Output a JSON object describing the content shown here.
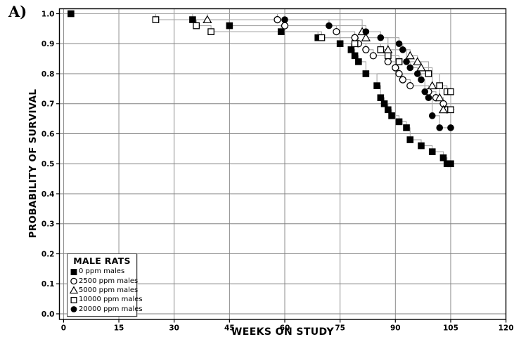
{
  "figure_label": "A)",
  "legend": {
    "title": "MALE RATS",
    "position": "lower-left"
  },
  "chart_data": {
    "type": "line",
    "step": true,
    "title": "",
    "xlabel": "WEEKS ON STUDY",
    "ylabel": "PROBABILITY OF SURVIVAL",
    "xlim": [
      0,
      120
    ],
    "ylim": [
      0.0,
      1.0
    ],
    "x_ticks": [
      0,
      15,
      30,
      45,
      60,
      75,
      90,
      105,
      120
    ],
    "y_tick_labels": [
      "1.0",
      "0.9",
      "0.8",
      "0.7",
      "0.6",
      "0.5",
      "0.4",
      "0.3",
      "0.2",
      "0.1",
      "0.0"
    ],
    "grid": true,
    "legend_position": "lower-left",
    "curve_end_week": 106,
    "series": [
      {
        "name": "0 ppm males",
        "marker": "filled-square",
        "points": [
          [
            2,
            1.0
          ],
          [
            35,
            0.98
          ],
          [
            45,
            0.96
          ],
          [
            59,
            0.94
          ],
          [
            69,
            0.92
          ],
          [
            75,
            0.9
          ],
          [
            78,
            0.88
          ],
          [
            79,
            0.86
          ],
          [
            80,
            0.84
          ],
          [
            82,
            0.8
          ],
          [
            85,
            0.76
          ],
          [
            86,
            0.72
          ],
          [
            87,
            0.7
          ],
          [
            88,
            0.68
          ],
          [
            89,
            0.66
          ],
          [
            91,
            0.64
          ],
          [
            93,
            0.62
          ],
          [
            94,
            0.58
          ],
          [
            97,
            0.56
          ],
          [
            100,
            0.54
          ],
          [
            103,
            0.52
          ],
          [
            104,
            0.5
          ],
          [
            105,
            0.5
          ]
        ]
      },
      {
        "name": "2500 ppm males",
        "marker": "open-circle",
        "points": [
          [
            58,
            0.98
          ],
          [
            60,
            0.96
          ],
          [
            74,
            0.94
          ],
          [
            79,
            0.92
          ],
          [
            80,
            0.9
          ],
          [
            82,
            0.88
          ],
          [
            84,
            0.86
          ],
          [
            88,
            0.84
          ],
          [
            90,
            0.82
          ],
          [
            91,
            0.8
          ],
          [
            92,
            0.78
          ],
          [
            94,
            0.76
          ],
          [
            99,
            0.74
          ],
          [
            101,
            0.72
          ],
          [
            103,
            0.7
          ],
          [
            104,
            0.68
          ]
        ]
      },
      {
        "name": "5000 ppm males",
        "marker": "open-triangle",
        "points": [
          [
            39,
            0.98
          ],
          [
            81,
            0.94
          ],
          [
            82,
            0.92
          ],
          [
            88,
            0.88
          ],
          [
            94,
            0.86
          ],
          [
            96,
            0.84
          ],
          [
            97,
            0.82
          ],
          [
            100,
            0.76
          ],
          [
            102,
            0.72
          ],
          [
            103,
            0.68
          ]
        ]
      },
      {
        "name": "10000 ppm males",
        "marker": "open-square",
        "points": [
          [
            25,
            0.98
          ],
          [
            36,
            0.96
          ],
          [
            40,
            0.94
          ],
          [
            70,
            0.92
          ],
          [
            79,
            0.9
          ],
          [
            86,
            0.88
          ],
          [
            88,
            0.86
          ],
          [
            91,
            0.84
          ],
          [
            99,
            0.8
          ],
          [
            102,
            0.76
          ],
          [
            104,
            0.74
          ],
          [
            105,
            0.74
          ],
          [
            105,
            0.68
          ]
        ]
      },
      {
        "name": "20000 ppm males",
        "marker": "filled-circle",
        "points": [
          [
            60,
            0.98
          ],
          [
            72,
            0.96
          ],
          [
            82,
            0.94
          ],
          [
            86,
            0.92
          ],
          [
            91,
            0.9
          ],
          [
            92,
            0.88
          ],
          [
            93,
            0.84
          ],
          [
            94,
            0.82
          ],
          [
            96,
            0.8
          ],
          [
            97,
            0.78
          ],
          [
            98,
            0.74
          ],
          [
            99,
            0.72
          ],
          [
            100,
            0.66
          ],
          [
            102,
            0.62
          ],
          [
            105,
            0.62
          ]
        ]
      }
    ]
  },
  "colors": {
    "marker": "#000000",
    "step_line": "#a6a6a6",
    "grid": "#808080",
    "frame": "#000000",
    "background": "#ffffff"
  }
}
